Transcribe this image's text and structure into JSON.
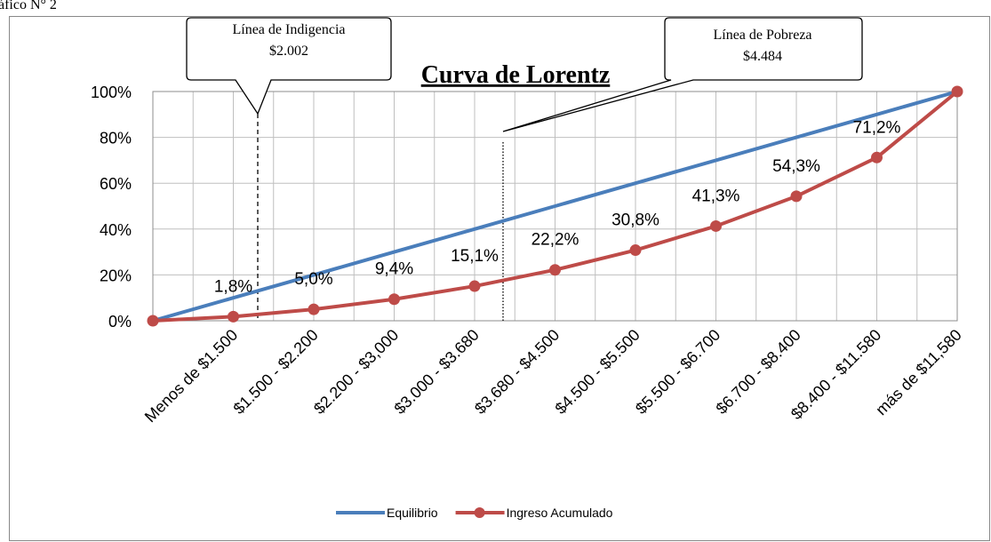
{
  "caption": "áfico N° 2",
  "chart_data": {
    "type": "line",
    "title": "Curva de Lorentz",
    "annotations": [
      {
        "title": "Línea de Indigencia",
        "value": "$2.002"
      },
      {
        "title": "Línea de Pobreza",
        "value": "$4.484"
      }
    ],
    "categories": [
      null,
      "Menos de $1.500",
      "$1.500 - $2.200",
      "$2.200 - $3,000",
      "$3.000 - $3.680",
      "$3.680 - $4.500",
      "$4.500 - $5.500",
      "$5.500 - $6.700",
      "$6.700 - $8.400",
      "$8.400 - $11.580",
      "más de $11,580"
    ],
    "series": [
      {
        "name": "Equilibrio",
        "color": "#4a7ebb",
        "values": [
          0,
          10,
          20,
          30,
          40,
          50,
          60,
          70,
          80,
          90,
          100
        ]
      },
      {
        "name": "Ingreso Acumulado",
        "color": "#be4b48",
        "values": [
          0,
          1.8,
          5.0,
          9.4,
          15.1,
          22.2,
          30.8,
          41.3,
          54.3,
          71.2,
          100
        ],
        "value_labels": [
          null,
          "1,8%",
          "5,0%",
          "9,4%",
          "15,1%",
          "22,2%",
          "30,8%",
          "41,3%",
          "54,3%",
          "71,2%",
          null
        ],
        "markers": true
      }
    ],
    "ylim": [
      0,
      100
    ],
    "yticks": [
      {
        "value": 0,
        "label": "0%"
      },
      {
        "value": 20,
        "label": "20%"
      },
      {
        "value": 40,
        "label": "40%"
      },
      {
        "value": 60,
        "label": "60%"
      },
      {
        "value": 80,
        "label": "80%"
      },
      {
        "value": 100,
        "label": "100%"
      }
    ],
    "grid": true,
    "legend": "bottom"
  }
}
